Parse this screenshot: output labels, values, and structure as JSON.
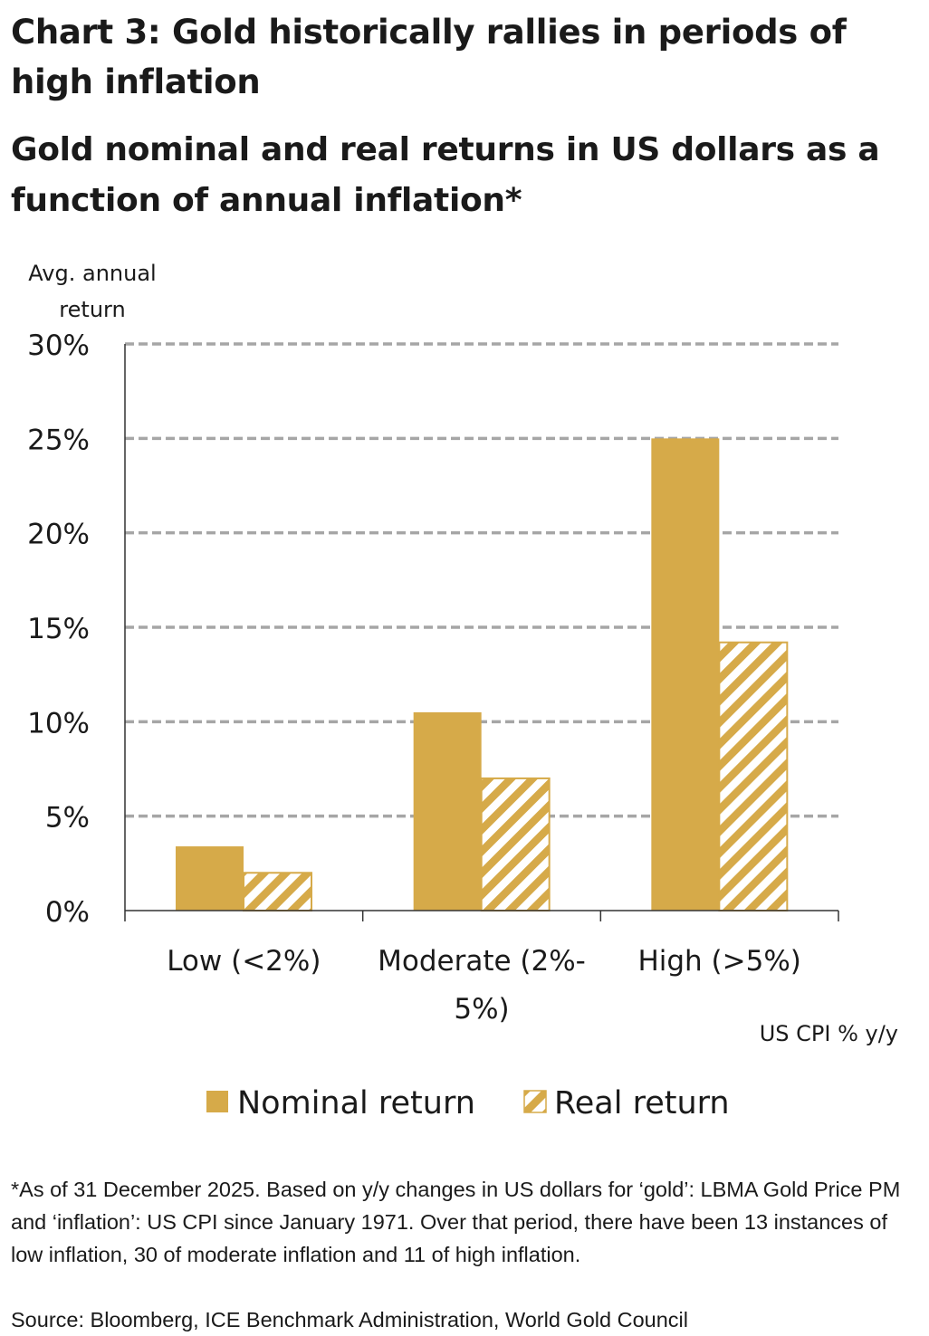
{
  "title": "Chart 3: Gold historically rallies in periods of high inflation",
  "subtitle": "Gold nominal and real returns in US dollars as a function of annual inflation*",
  "footnote": "*As of 31 December 2025. Based on y/y changes in US dollars for ‘gold’: LBMA Gold Price PM and ‘inflation’: US CPI since January 1971. Over that period, there have been 13 instances of low inflation, 30 of moderate inflation and 11 of high inflation.",
  "source": "Source: Bloomberg, ICE Benchmark Administration, World Gold Council",
  "colors": {
    "gold": "#D6AA49",
    "grid": "#A6A6A6",
    "axis": "#7F7F7F"
  },
  "chart_data": {
    "type": "bar",
    "ylabel": "Avg. annual return",
    "xlabel": "US CPI % y/y",
    "categories": [
      "Low (<2%)",
      "Moderate (2%-5%)",
      "High (>5%)"
    ],
    "category_lines": [
      [
        "Low (<2%)"
      ],
      [
        "Moderate (2%-",
        "5%)"
      ],
      [
        "High (>5%)"
      ]
    ],
    "series": [
      {
        "name": "Nominal return",
        "values": [
          3.4,
          10.5,
          25.0
        ],
        "style": "solid"
      },
      {
        "name": "Real return",
        "values": [
          2.0,
          7.0,
          14.2
        ],
        "style": "hatched"
      }
    ],
    "ylim": [
      0,
      30
    ],
    "yticks": [
      0,
      5,
      10,
      15,
      20,
      25,
      30
    ],
    "ytick_labels": [
      "0%",
      "5%",
      "10%",
      "15%",
      "20%",
      "25%",
      "30%"
    ],
    "grid": true,
    "legend_position": "bottom"
  }
}
